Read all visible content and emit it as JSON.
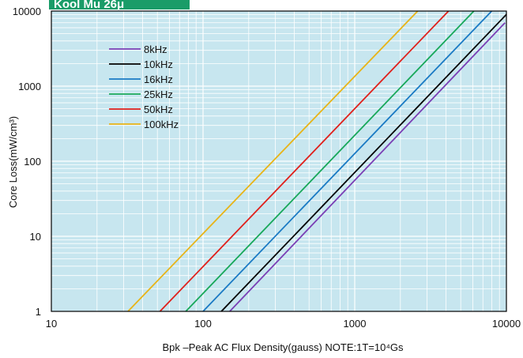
{
  "chart_data": {
    "type": "line",
    "title": "Kool Mu 26μ",
    "x_scale": "log",
    "y_scale": "log",
    "xlim": [
      10,
      10000
    ],
    "ylim": [
      1,
      10000
    ],
    "xlabel": "Bpk –Peak AC Flux Density(gauss)  NOTE:1T=10⁴Gs",
    "ylabel": "Core Loss(mW/cm³)",
    "x_ticks": [
      "10",
      "100",
      "1000",
      "10000"
    ],
    "y_ticks": [
      "1",
      "10",
      "100",
      "1000",
      "10000"
    ],
    "grid": true,
    "legend_position": "top-left",
    "plot_background": "#c7e6ef",
    "grid_color": "#ffffff",
    "series": [
      {
        "name": "8kHz",
        "color": "#7a3fb5",
        "x": [
          150,
          9800
        ],
        "y": [
          1,
          7000
        ]
      },
      {
        "name": "10kHz",
        "color": "#000000",
        "x": [
          132,
          10000
        ],
        "y": [
          1,
          9000
        ]
      },
      {
        "name": "16kHz",
        "color": "#1a7ac4",
        "x": [
          100,
          8000
        ],
        "y": [
          1,
          10000
        ]
      },
      {
        "name": "25kHz",
        "color": "#18a85a",
        "x": [
          77,
          6100
        ],
        "y": [
          1,
          10000
        ]
      },
      {
        "name": "50kHz",
        "color": "#e0201b",
        "x": [
          52,
          4150
        ],
        "y": [
          1,
          10000
        ]
      },
      {
        "name": "100kHz",
        "color": "#e8b417",
        "x": [
          32,
          2600
        ],
        "y": [
          1,
          10000
        ]
      }
    ]
  }
}
